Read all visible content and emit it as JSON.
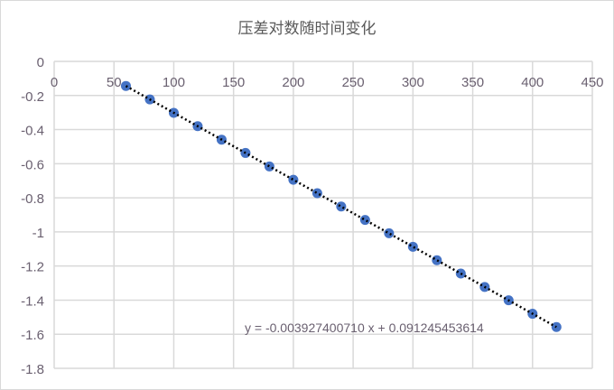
{
  "chart_data": {
    "type": "scatter",
    "title": "压差对数随时间变化",
    "xlabel": "",
    "ylabel": "",
    "xlim": [
      0,
      450
    ],
    "ylim": [
      -1.8,
      0
    ],
    "x_ticks": [
      "0",
      "50",
      "100",
      "150",
      "200",
      "250",
      "300",
      "350",
      "400",
      "450"
    ],
    "y_ticks": [
      "0",
      "-0.2",
      "-0.4",
      "-0.6",
      "-0.8",
      "-1",
      "-1.2",
      "-1.4",
      "-1.6",
      "-1.8"
    ],
    "x_axis_position": "top",
    "grid": true,
    "legend": "none",
    "marker_color": "#4472c4",
    "trendline": {
      "type": "linear",
      "color": "#000000",
      "style": "dotted",
      "slope": -0.00392740071,
      "intercept": 0.091245453614,
      "label": "y = -0.003927400710 x + 0.091245453614"
    },
    "series": [
      {
        "x": [
          60,
          80,
          100,
          120,
          140,
          160,
          180,
          200,
          220,
          240,
          260,
          280,
          300,
          320,
          340,
          360,
          380,
          400,
          420
        ],
        "y": [
          -0.144,
          -0.223,
          -0.302,
          -0.38,
          -0.459,
          -0.537,
          -0.616,
          -0.694,
          -0.773,
          -0.851,
          -0.93,
          -1.008,
          -1.087,
          -1.166,
          -1.244,
          -1.323,
          -1.401,
          -1.48,
          -1.558
        ]
      }
    ]
  }
}
